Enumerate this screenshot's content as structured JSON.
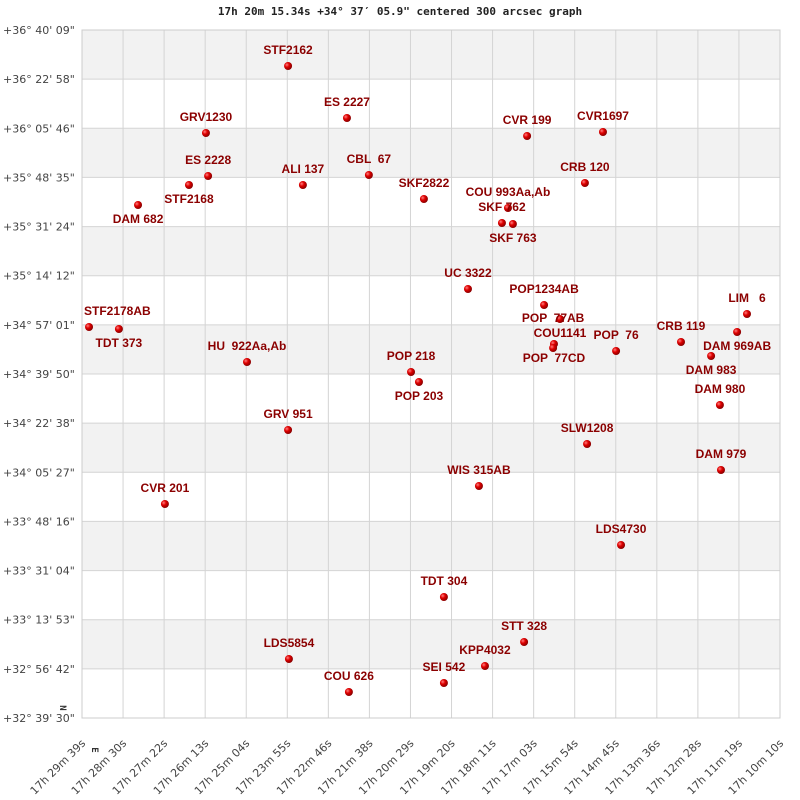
{
  "chart_data": {
    "type": "scatter",
    "title": "17h 20m 15.34s +34° 37′ 05.9\" centered 300 arcsec graph",
    "x_unit": "right ascension (hours)",
    "y_unit": "declination (degrees)",
    "xlim": [
      17.494167,
      17.169444
    ],
    "ylim": [
      32.658333,
      36.669167
    ],
    "grid": true,
    "x_tick_labels": [
      "17h 29m 39s",
      "17h 28m 30s",
      "17h 27m 22s",
      "17h 26m 13s",
      "17h 25m 04s",
      "17h 23m 55s",
      "17h 22m 46s",
      "17h 21m 38s",
      "17h 20m 29s",
      "17h 19m 20s",
      "17h 18m 11s",
      "17h 17m 03s",
      "17h 15m 54s",
      "17h 14m 45s",
      "17h 13m 36s",
      "17h 12m 28s",
      "17h 11m 19s",
      "17h 10m 10s"
    ],
    "y_tick_labels": [
      "+36° 40' 09\"",
      "+36° 22' 58\"",
      "+36° 05' 46\"",
      "+35° 48' 35\"",
      "+35° 31' 24\"",
      "+35° 14' 12\"",
      "+34° 57' 01\"",
      "+34° 39' 50\"",
      "+34° 22' 38\"",
      "+34° 05' 27\"",
      "+33° 48' 16\"",
      "+33° 31' 04\"",
      "+33° 13' 53\"",
      "+32° 56' 42\"",
      "+32° 39' 30\""
    ],
    "compass": {
      "north": "N",
      "east": "E"
    },
    "point_color": "#dd0000",
    "label_color": "#8b0000",
    "points": [
      {
        "name": "STF2162",
        "ra": 17.3983,
        "dec": 36.4593
      },
      {
        "name": "ES 2227",
        "ra": 17.3709,
        "dec": 36.1562
      },
      {
        "name": "GRV1230",
        "ra": 17.4365,
        "dec": 36.0687
      },
      {
        "name": "ES 2228",
        "ra": 17.4355,
        "dec": 35.8181
      },
      {
        "name": "STF2168",
        "ra": 17.4444,
        "dec": 35.7656
      },
      {
        "name": "DAM 682",
        "ra": 17.4681,
        "dec": 35.649
      },
      {
        "name": "ALI 137",
        "ra": 17.3914,
        "dec": 35.7656
      },
      {
        "name": "CBL  67",
        "ra": 17.3607,
        "dec": 35.8239
      },
      {
        "name": "SKF2822",
        "ra": 17.3351,
        "dec": 35.684
      },
      {
        "name": "CVR 199",
        "ra": 17.2871,
        "dec": 36.0513
      },
      {
        "name": "CVR1697",
        "ra": 17.2518,
        "dec": 36.0746
      },
      {
        "name": "CRB 120",
        "ra": 17.2602,
        "dec": 35.7773
      },
      {
        "name": "COU 993Aa,Ab",
        "ra": 17.296,
        "dec": 35.6315
      },
      {
        "name": "SKF 762",
        "ra": 17.2988,
        "dec": 35.5441
      },
      {
        "name": "SKF 763",
        "ra": 17.2937,
        "dec": 35.5382
      },
      {
        "name": "UC 3322",
        "ra": 17.3146,
        "dec": 35.1593
      },
      {
        "name": "POP1234AB",
        "ra": 17.2792,
        "dec": 35.066
      },
      {
        "name": "COU1141",
        "ra": 17.2718,
        "dec": 34.9844
      },
      {
        "name": "POP  77CD",
        "ra": 17.2746,
        "dec": 34.8387
      },
      {
        "name": "POP  77AB",
        "ra": 17.275,
        "dec": 34.8154
      },
      {
        "name": "POP  76",
        "ra": 17.2457,
        "dec": 34.7979
      },
      {
        "name": "CRB 119",
        "ra": 17.2155,
        "dec": 34.8503
      },
      {
        "name": "DAM 983",
        "ra": 17.2015,
        "dec": 34.7687
      },
      {
        "name": "DAM 969AB",
        "ra": 17.1894,
        "dec": 34.9086
      },
      {
        "name": "LIM   6",
        "ra": 17.1848,
        "dec": 35.0136
      },
      {
        "name": "STF2178AB",
        "ra": 17.4909,
        "dec": 34.9378
      },
      {
        "name": "TDT 373",
        "ra": 17.477,
        "dec": 34.9261
      },
      {
        "name": "HU  922Aa,Ab",
        "ra": 17.4174,
        "dec": 34.7337
      },
      {
        "name": "POP 218",
        "ra": 17.3411,
        "dec": 34.6754
      },
      {
        "name": "POP 203",
        "ra": 17.3374,
        "dec": 34.6171
      },
      {
        "name": "GRV 951",
        "ra": 17.3983,
        "dec": 34.3373
      },
      {
        "name": "DAM 980",
        "ra": 17.1974,
        "dec": 34.4831
      },
      {
        "name": "SLW1208",
        "ra": 17.2592,
        "dec": 34.2557
      },
      {
        "name": "DAM 979",
        "ra": 17.1969,
        "dec": 34.1041
      },
      {
        "name": "WIS 315AB",
        "ra": 17.3095,
        "dec": 34.0109
      },
      {
        "name": "CVR 201",
        "ra": 17.4556,
        "dec": 33.9059
      },
      {
        "name": "LDS4730",
        "ra": 17.2434,
        "dec": 33.6669
      },
      {
        "name": "TDT 304",
        "ra": 17.3258,
        "dec": 33.3638
      },
      {
        "name": "STT 328",
        "ra": 17.2885,
        "dec": 33.1014
      },
      {
        "name": "KPP4032",
        "ra": 17.3067,
        "dec": 32.9615
      },
      {
        "name": "SEI 542",
        "ra": 17.3258,
        "dec": 32.8624
      },
      {
        "name": "LDS5854",
        "ra": 17.3979,
        "dec": 33.0023
      },
      {
        "name": "COU 626",
        "ra": 17.37,
        "dec": 32.8099
      }
    ]
  }
}
